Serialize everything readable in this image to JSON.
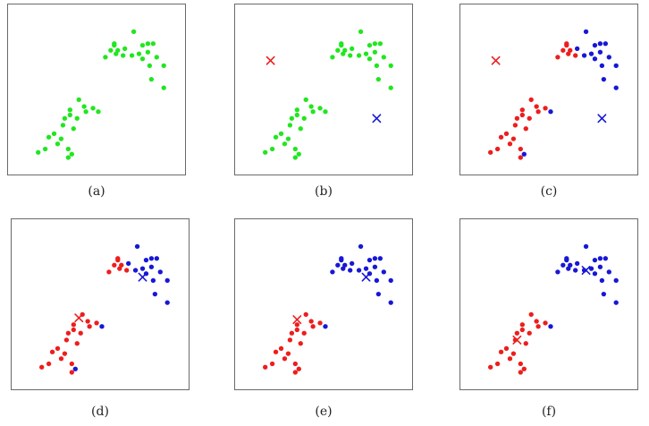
{
  "colors": {
    "green": "#21e61f",
    "red": "#ee1d1d",
    "blue": "#1717d6",
    "frame": "#6a6a6a"
  },
  "chart_data": [
    {
      "type": "scatter",
      "caption": "(a)",
      "xlim": [
        0,
        10
      ],
      "ylim": [
        0,
        10
      ],
      "grid": false,
      "series": [
        {
          "color": "green",
          "points": [
            [
              5.5,
              6.9
            ],
            [
              5.8,
              7.3
            ],
            [
              6.0,
              7.6
            ],
            [
              6.2,
              7.3
            ],
            [
              6.1,
              7.1
            ],
            [
              6.5,
              7.0
            ],
            [
              6.6,
              7.4
            ],
            [
              7.0,
              7.0
            ],
            [
              7.4,
              7.1
            ],
            [
              7.6,
              6.8
            ],
            [
              7.1,
              8.4
            ],
            [
              7.6,
              7.6
            ],
            [
              7.9,
              7.7
            ],
            [
              7.9,
              7.2
            ],
            [
              8.2,
              7.7
            ],
            [
              8.0,
              6.4
            ],
            [
              8.4,
              6.9
            ],
            [
              8.8,
              6.4
            ],
            [
              8.1,
              5.6
            ],
            [
              8.8,
              5.1
            ],
            [
              6.0,
              7.7
            ],
            [
              3.5,
              3.8
            ],
            [
              4.0,
              4.4
            ],
            [
              4.3,
              4.0
            ],
            [
              3.2,
              3.3
            ],
            [
              3.5,
              3.5
            ],
            [
              4.4,
              3.7
            ],
            [
              3.9,
              3.3
            ],
            [
              3.1,
              2.9
            ],
            [
              4.8,
              3.9
            ],
            [
              3.7,
              2.7
            ],
            [
              2.6,
              2.4
            ],
            [
              2.3,
              2.2
            ],
            [
              3.0,
              2.1
            ],
            [
              2.8,
              1.8
            ],
            [
              2.1,
              1.5
            ],
            [
              1.7,
              1.3
            ],
            [
              5.1,
              3.7
            ],
            [
              3.4,
              1.5
            ],
            [
              3.6,
              1.2
            ],
            [
              3.4,
              1.0
            ]
          ]
        }
      ],
      "centroids": []
    },
    {
      "type": "scatter",
      "caption": "(b)",
      "xlim": [
        0,
        10
      ],
      "ylim": [
        0,
        10
      ],
      "grid": false,
      "series": [
        {
          "color": "green",
          "points": [
            [
              5.5,
              6.9
            ],
            [
              5.8,
              7.3
            ],
            [
              6.0,
              7.6
            ],
            [
              6.2,
              7.3
            ],
            [
              6.1,
              7.1
            ],
            [
              6.5,
              7.0
            ],
            [
              6.6,
              7.4
            ],
            [
              7.0,
              7.0
            ],
            [
              7.4,
              7.1
            ],
            [
              7.6,
              6.8
            ],
            [
              7.1,
              8.4
            ],
            [
              7.6,
              7.6
            ],
            [
              7.9,
              7.7
            ],
            [
              7.9,
              7.2
            ],
            [
              8.2,
              7.7
            ],
            [
              8.0,
              6.4
            ],
            [
              8.4,
              6.9
            ],
            [
              8.8,
              6.4
            ],
            [
              8.1,
              5.6
            ],
            [
              8.8,
              5.1
            ],
            [
              6.0,
              7.7
            ],
            [
              3.5,
              3.8
            ],
            [
              4.0,
              4.4
            ],
            [
              4.3,
              4.0
            ],
            [
              3.2,
              3.3
            ],
            [
              3.5,
              3.5
            ],
            [
              4.4,
              3.7
            ],
            [
              3.9,
              3.3
            ],
            [
              3.1,
              2.9
            ],
            [
              4.8,
              3.9
            ],
            [
              3.7,
              2.7
            ],
            [
              2.6,
              2.4
            ],
            [
              2.3,
              2.2
            ],
            [
              3.0,
              2.1
            ],
            [
              2.8,
              1.8
            ],
            [
              2.1,
              1.5
            ],
            [
              1.7,
              1.3
            ],
            [
              5.1,
              3.7
            ],
            [
              3.4,
              1.5
            ],
            [
              3.6,
              1.2
            ],
            [
              3.4,
              1.0
            ]
          ]
        }
      ],
      "centroids": [
        {
          "color": "red",
          "point": [
            2.0,
            6.7
          ]
        },
        {
          "color": "blue",
          "point": [
            8.0,
            3.3
          ]
        }
      ]
    },
    {
      "type": "scatter",
      "caption": "(c)",
      "xlim": [
        0,
        10
      ],
      "ylim": [
        0,
        10
      ],
      "grid": false,
      "series": [
        {
          "color": "red",
          "points": [
            [
              5.5,
              6.9
            ],
            [
              5.8,
              7.3
            ],
            [
              6.0,
              7.6
            ],
            [
              6.2,
              7.3
            ],
            [
              6.1,
              7.1
            ],
            [
              6.0,
              7.7
            ],
            [
              6.5,
              7.0
            ],
            [
              3.5,
              3.8
            ],
            [
              4.0,
              4.4
            ],
            [
              4.3,
              4.0
            ],
            [
              3.2,
              3.3
            ],
            [
              3.5,
              3.5
            ],
            [
              4.4,
              3.7
            ],
            [
              3.9,
              3.3
            ],
            [
              3.1,
              2.9
            ],
            [
              4.8,
              3.9
            ],
            [
              3.7,
              2.7
            ],
            [
              2.6,
              2.4
            ],
            [
              2.3,
              2.2
            ],
            [
              3.0,
              2.1
            ],
            [
              2.8,
              1.8
            ],
            [
              2.1,
              1.5
            ],
            [
              1.7,
              1.3
            ],
            [
              3.4,
              1.5
            ],
            [
              3.4,
              1.0
            ]
          ]
        },
        {
          "color": "blue",
          "points": [
            [
              6.6,
              7.4
            ],
            [
              7.0,
              7.0
            ],
            [
              7.4,
              7.1
            ],
            [
              7.6,
              6.8
            ],
            [
              7.1,
              8.4
            ],
            [
              7.6,
              7.6
            ],
            [
              7.9,
              7.7
            ],
            [
              7.9,
              7.2
            ],
            [
              8.2,
              7.7
            ],
            [
              8.0,
              6.4
            ],
            [
              8.4,
              6.9
            ],
            [
              8.8,
              6.4
            ],
            [
              8.1,
              5.6
            ],
            [
              8.8,
              5.1
            ],
            [
              5.1,
              3.7
            ],
            [
              3.6,
              1.2
            ]
          ]
        }
      ],
      "centroids": [
        {
          "color": "red",
          "point": [
            2.0,
            6.7
          ]
        },
        {
          "color": "blue",
          "point": [
            8.0,
            3.3
          ]
        }
      ]
    },
    {
      "type": "scatter",
      "caption": "(d)",
      "xlim": [
        0,
        10
      ],
      "ylim": [
        0,
        10
      ],
      "grid": false,
      "series": [
        {
          "color": "red",
          "points": [
            [
              5.5,
              6.9
            ],
            [
              5.8,
              7.3
            ],
            [
              6.0,
              7.6
            ],
            [
              6.2,
              7.3
            ],
            [
              6.1,
              7.1
            ],
            [
              6.0,
              7.7
            ],
            [
              6.5,
              7.0
            ],
            [
              3.5,
              3.8
            ],
            [
              4.0,
              4.4
            ],
            [
              4.3,
              4.0
            ],
            [
              3.2,
              3.3
            ],
            [
              3.5,
              3.5
            ],
            [
              4.4,
              3.7
            ],
            [
              3.9,
              3.3
            ],
            [
              3.1,
              2.9
            ],
            [
              4.8,
              3.9
            ],
            [
              3.7,
              2.7
            ],
            [
              2.6,
              2.4
            ],
            [
              2.3,
              2.2
            ],
            [
              3.0,
              2.1
            ],
            [
              2.8,
              1.8
            ],
            [
              2.1,
              1.5
            ],
            [
              1.7,
              1.3
            ],
            [
              3.4,
              1.5
            ],
            [
              3.4,
              1.0
            ]
          ]
        },
        {
          "color": "blue",
          "points": [
            [
              6.6,
              7.4
            ],
            [
              7.0,
              7.0
            ],
            [
              7.4,
              7.1
            ],
            [
              7.6,
              6.8
            ],
            [
              7.1,
              8.4
            ],
            [
              7.6,
              7.6
            ],
            [
              7.9,
              7.7
            ],
            [
              7.9,
              7.2
            ],
            [
              8.2,
              7.7
            ],
            [
              8.0,
              6.4
            ],
            [
              8.4,
              6.9
            ],
            [
              8.8,
              6.4
            ],
            [
              8.1,
              5.6
            ],
            [
              8.8,
              5.1
            ],
            [
              5.1,
              3.7
            ],
            [
              3.6,
              1.2
            ]
          ]
        }
      ],
      "centroids": [
        {
          "color": "red",
          "point": [
            3.8,
            4.2
          ]
        },
        {
          "color": "blue",
          "point": [
            7.4,
            6.6
          ]
        }
      ]
    },
    {
      "type": "scatter",
      "caption": "(e)",
      "xlim": [
        0,
        10
      ],
      "ylim": [
        0,
        10
      ],
      "grid": false,
      "series": [
        {
          "color": "red",
          "points": [
            [
              3.5,
              3.8
            ],
            [
              4.0,
              4.4
            ],
            [
              4.3,
              4.0
            ],
            [
              3.2,
              3.3
            ],
            [
              3.5,
              3.5
            ],
            [
              4.4,
              3.7
            ],
            [
              3.9,
              3.3
            ],
            [
              3.1,
              2.9
            ],
            [
              4.8,
              3.9
            ],
            [
              3.7,
              2.7
            ],
            [
              2.6,
              2.4
            ],
            [
              2.3,
              2.2
            ],
            [
              3.0,
              2.1
            ],
            [
              2.8,
              1.8
            ],
            [
              2.1,
              1.5
            ],
            [
              1.7,
              1.3
            ],
            [
              3.4,
              1.5
            ],
            [
              3.6,
              1.2
            ],
            [
              3.4,
              1.0
            ]
          ]
        },
        {
          "color": "blue",
          "points": [
            [
              5.5,
              6.9
            ],
            [
              5.8,
              7.3
            ],
            [
              6.0,
              7.6
            ],
            [
              6.2,
              7.3
            ],
            [
              6.1,
              7.1
            ],
            [
              6.0,
              7.7
            ],
            [
              6.5,
              7.0
            ],
            [
              6.6,
              7.4
            ],
            [
              7.0,
              7.0
            ],
            [
              7.4,
              7.1
            ],
            [
              7.6,
              6.8
            ],
            [
              7.1,
              8.4
            ],
            [
              7.6,
              7.6
            ],
            [
              7.9,
              7.7
            ],
            [
              7.9,
              7.2
            ],
            [
              8.2,
              7.7
            ],
            [
              8.0,
              6.4
            ],
            [
              8.4,
              6.9
            ],
            [
              8.8,
              6.4
            ],
            [
              8.1,
              5.6
            ],
            [
              8.8,
              5.1
            ],
            [
              5.1,
              3.7
            ]
          ]
        }
      ],
      "centroids": [
        {
          "color": "red",
          "point": [
            3.5,
            4.1
          ]
        },
        {
          "color": "blue",
          "point": [
            7.4,
            6.6
          ]
        }
      ]
    },
    {
      "type": "scatter",
      "caption": "(f)",
      "xlim": [
        0,
        10
      ],
      "ylim": [
        0,
        10
      ],
      "grid": false,
      "series": [
        {
          "color": "red",
          "points": [
            [
              3.5,
              3.8
            ],
            [
              4.0,
              4.4
            ],
            [
              4.3,
              4.0
            ],
            [
              3.2,
              3.3
            ],
            [
              3.5,
              3.5
            ],
            [
              4.4,
              3.7
            ],
            [
              3.9,
              3.3
            ],
            [
              3.1,
              2.9
            ],
            [
              4.8,
              3.9
            ],
            [
              3.7,
              2.7
            ],
            [
              2.6,
              2.4
            ],
            [
              2.3,
              2.2
            ],
            [
              3.0,
              2.1
            ],
            [
              2.8,
              1.8
            ],
            [
              2.1,
              1.5
            ],
            [
              1.7,
              1.3
            ],
            [
              3.4,
              1.5
            ],
            [
              3.6,
              1.2
            ],
            [
              3.4,
              1.0
            ]
          ]
        },
        {
          "color": "blue",
          "points": [
            [
              5.5,
              6.9
            ],
            [
              5.8,
              7.3
            ],
            [
              6.0,
              7.6
            ],
            [
              6.2,
              7.3
            ],
            [
              6.1,
              7.1
            ],
            [
              6.0,
              7.7
            ],
            [
              6.5,
              7.0
            ],
            [
              6.6,
              7.4
            ],
            [
              7.0,
              7.0
            ],
            [
              7.4,
              7.1
            ],
            [
              7.6,
              6.8
            ],
            [
              7.1,
              8.4
            ],
            [
              7.6,
              7.6
            ],
            [
              7.9,
              7.7
            ],
            [
              7.9,
              7.2
            ],
            [
              8.2,
              7.7
            ],
            [
              8.0,
              6.4
            ],
            [
              8.4,
              6.9
            ],
            [
              8.8,
              6.4
            ],
            [
              8.1,
              5.6
            ],
            [
              8.8,
              5.1
            ],
            [
              5.1,
              3.7
            ]
          ]
        }
      ],
      "centroids": [
        {
          "color": "red",
          "point": [
            3.2,
            2.9
          ]
        },
        {
          "color": "blue",
          "point": [
            7.1,
            7.0
          ]
        }
      ]
    }
  ]
}
